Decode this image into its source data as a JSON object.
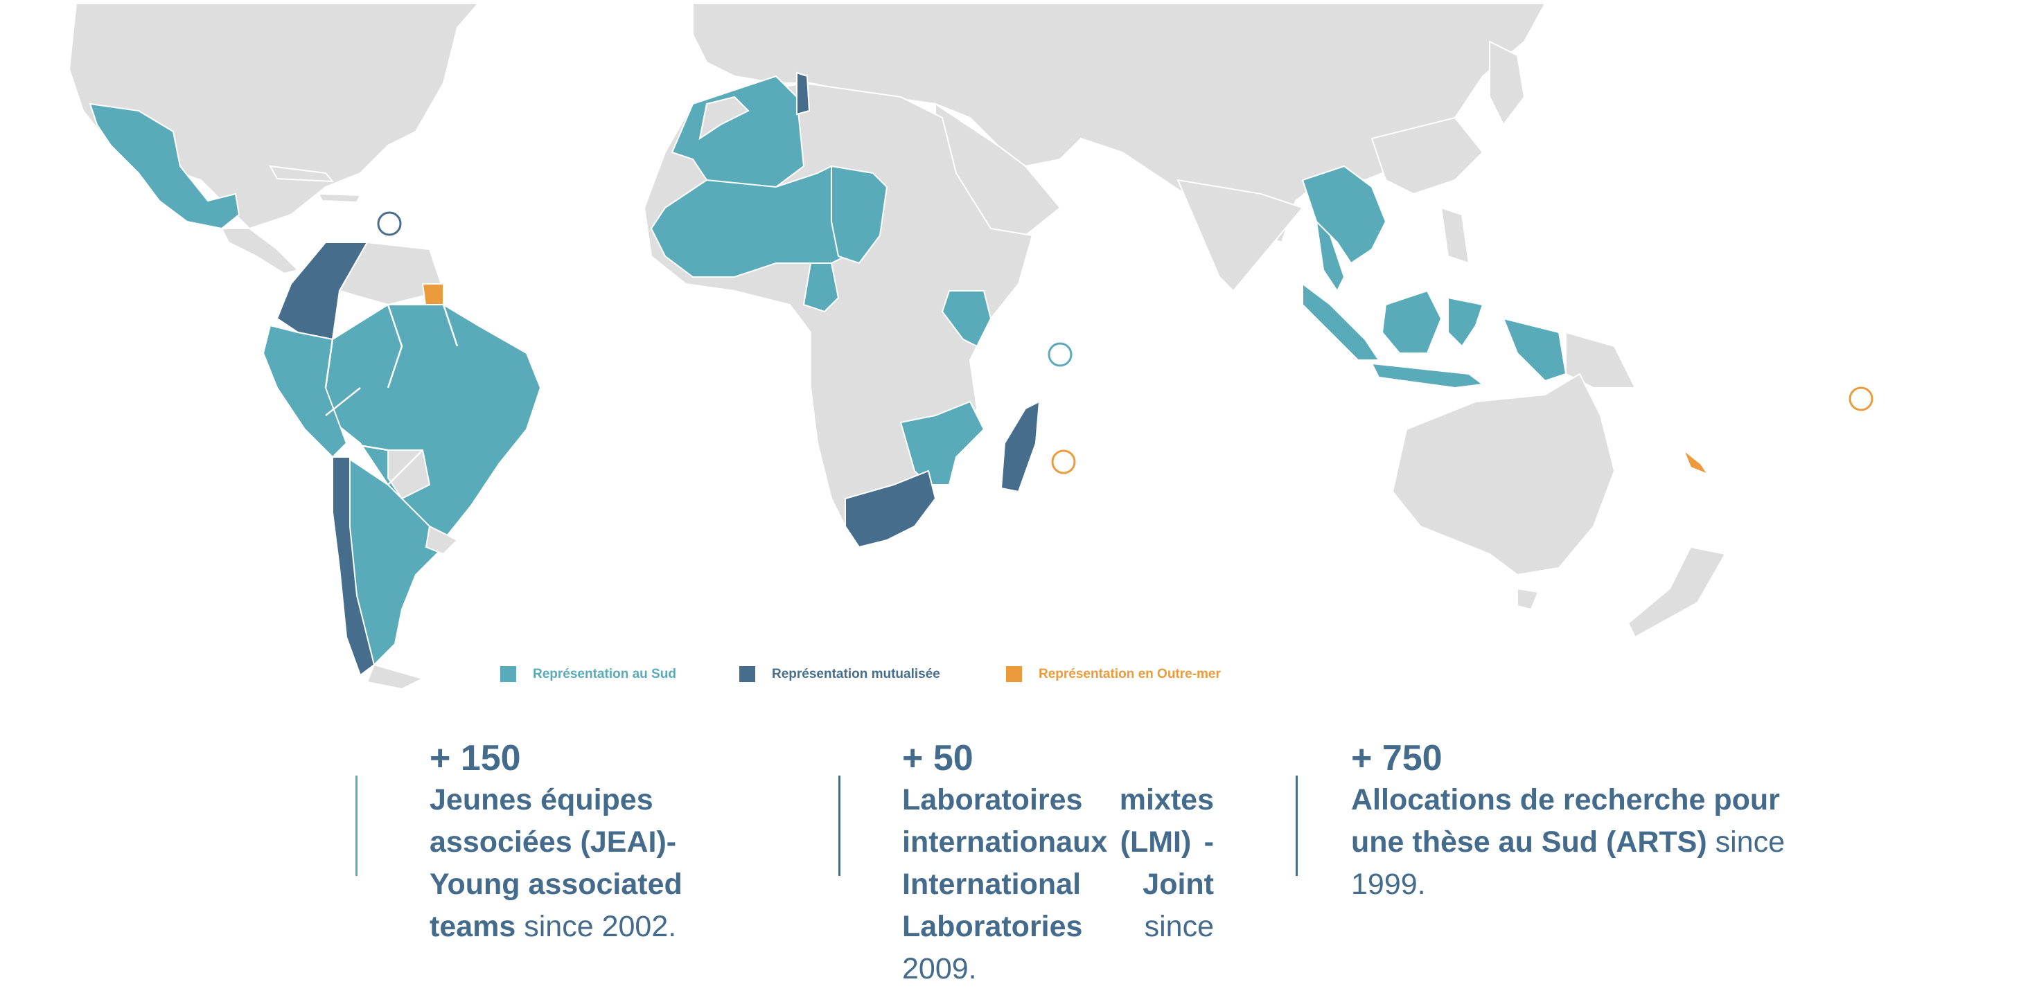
{
  "colors": {
    "sud": "#5aabb9",
    "mutualisee": "#466e8c",
    "outre_mer": "#eb9b3c",
    "land": "#dedede",
    "text": "#446b8b"
  },
  "legend": [
    {
      "label": "Représentation au Sud",
      "color": "#5aabb9"
    },
    {
      "label": "Représentation mutualisée",
      "color": "#466e8c"
    },
    {
      "label": "Représentation en Outre-mer",
      "color": "#eb9b3c"
    }
  ],
  "stats": [
    {
      "number": "+ 150",
      "bold_text": "Jeunes équipes associées (JEAI)- Young associated teams",
      "plain_text": "since 2002."
    },
    {
      "number": "+ 50",
      "bold_text": "Laboratoires mixtes internationaux (LMI) - International Joint Laboratories",
      "plain_text": "since 2009."
    },
    {
      "number": "+ 750",
      "bold_text": "Allocations de recherche pour une thèse au Sud (ARTS)",
      "plain_text": "since 1999."
    }
  ]
}
